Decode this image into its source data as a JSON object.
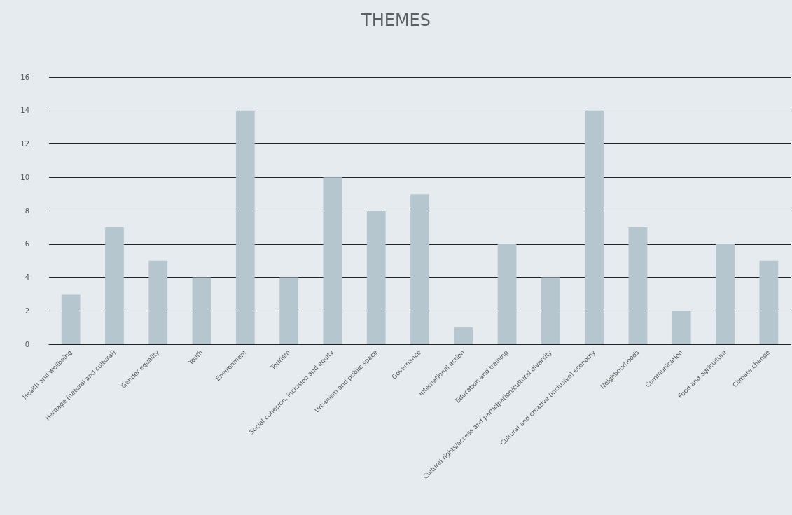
{
  "chart_data": {
    "type": "bar",
    "title": "THEMES",
    "categories": [
      "Health and wellbeing",
      "Heritage (natural and cultural)",
      "Gender equality",
      "Youth",
      "Environment",
      "Tourism",
      "Social cohesion, inclusion and equity",
      "Urbanism and public space",
      "Governance",
      "International action",
      "Education and training",
      "Cultural rights/access and participation/cultural diversity",
      "Cultural and creative (inclusive) economy",
      "Neighbourhoods",
      "Communication",
      "Food and agriculture",
      "Climate change"
    ],
    "values": [
      3,
      7,
      5,
      4,
      14,
      4,
      10,
      8,
      9,
      1,
      6,
      4,
      14,
      7,
      2,
      6,
      5
    ],
    "color": "#b5c6cf",
    "ylim": [
      0,
      16
    ],
    "yticks": [
      0,
      2,
      4,
      6,
      8,
      10,
      12,
      14,
      16
    ],
    "grid": "y"
  }
}
